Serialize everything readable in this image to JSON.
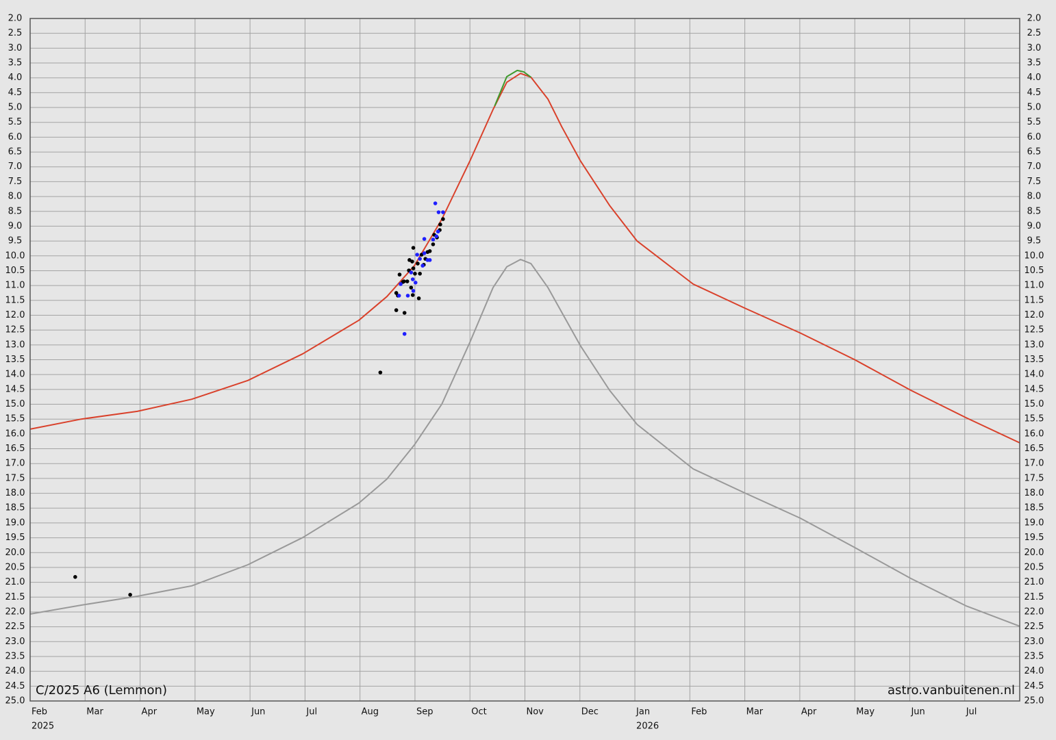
{
  "chart_data": {
    "type": "line",
    "title": "C/2025 A6 (Lemmon)",
    "source": "astro.vanbuitenen.nl",
    "xlim": [
      0,
      18
    ],
    "xticks": [
      {
        "value": 0,
        "label": "Feb"
      },
      {
        "value": 1,
        "label": "Mar"
      },
      {
        "value": 2,
        "label": "Apr"
      },
      {
        "value": 3,
        "label": "May"
      },
      {
        "value": 4,
        "label": "Jun"
      },
      {
        "value": 5,
        "label": "Jul"
      },
      {
        "value": 6,
        "label": "Aug"
      },
      {
        "value": 7,
        "label": "Sep"
      },
      {
        "value": 8,
        "label": "Oct"
      },
      {
        "value": 9,
        "label": "Nov"
      },
      {
        "value": 10,
        "label": "Dec"
      },
      {
        "value": 11,
        "label": "Jan"
      },
      {
        "value": 12,
        "label": "Feb"
      },
      {
        "value": 13,
        "label": "Mar"
      },
      {
        "value": 14,
        "label": "Apr"
      },
      {
        "value": 15,
        "label": "May"
      },
      {
        "value": 16,
        "label": "Jun"
      },
      {
        "value": 17,
        "label": "Jul"
      }
    ],
    "year_labels": [
      {
        "value": 0,
        "label": "2025"
      },
      {
        "value": 11,
        "label": "2026"
      }
    ],
    "ylim": [
      25,
      2
    ],
    "yticks": [
      {
        "value": 2,
        "label": "2.0"
      },
      {
        "value": 2.5,
        "label": "2.5"
      },
      {
        "value": 3,
        "label": "3.0"
      },
      {
        "value": 3.5,
        "label": "3.5"
      },
      {
        "value": 4,
        "label": "4.0"
      },
      {
        "value": 4.5,
        "label": "4.5"
      },
      {
        "value": 5,
        "label": "5.0"
      },
      {
        "value": 5.5,
        "label": "5.5"
      },
      {
        "value": 6,
        "label": "6.0"
      },
      {
        "value": 6.5,
        "label": "6.5"
      },
      {
        "value": 7,
        "label": "7.0"
      },
      {
        "value": 7.5,
        "label": "7.5"
      },
      {
        "value": 8,
        "label": "8.0"
      },
      {
        "value": 8.5,
        "label": "8.5"
      },
      {
        "value": 9,
        "label": "9.0"
      },
      {
        "value": 9.5,
        "label": "9.5"
      },
      {
        "value": 10,
        "label": "10.0"
      },
      {
        "value": 10.5,
        "label": "10.5"
      },
      {
        "value": 11,
        "label": "11.0"
      },
      {
        "value": 11.5,
        "label": "11.5"
      },
      {
        "value": 12,
        "label": "12.0"
      },
      {
        "value": 12.5,
        "label": "12.5"
      },
      {
        "value": 13,
        "label": "13.0"
      },
      {
        "value": 13.5,
        "label": "13.5"
      },
      {
        "value": 14,
        "label": "14.0"
      },
      {
        "value": 14.5,
        "label": "14.5"
      },
      {
        "value": 15,
        "label": "15.0"
      },
      {
        "value": 15.5,
        "label": "15.5"
      },
      {
        "value": 16,
        "label": "16.0"
      },
      {
        "value": 16.5,
        "label": "16.5"
      },
      {
        "value": 17,
        "label": "17.0"
      },
      {
        "value": 17.5,
        "label": "17.5"
      },
      {
        "value": 18,
        "label": "18.0"
      },
      {
        "value": 18.5,
        "label": "18.5"
      },
      {
        "value": 19,
        "label": "19.0"
      },
      {
        "value": 19.5,
        "label": "19.5"
      },
      {
        "value": 20,
        "label": "20.0"
      },
      {
        "value": 20.5,
        "label": "20.5"
      },
      {
        "value": 21,
        "label": "21.0"
      },
      {
        "value": 21.5,
        "label": "21.5"
      },
      {
        "value": 22,
        "label": "22.0"
      },
      {
        "value": 22.5,
        "label": "22.5"
      },
      {
        "value": 23,
        "label": "23.0"
      },
      {
        "value": 23.5,
        "label": "23.5"
      },
      {
        "value": 24,
        "label": "24.0"
      },
      {
        "value": 24.5,
        "label": "24.5"
      },
      {
        "value": 25,
        "label": "25.0"
      }
    ],
    "grid": true,
    "series": [
      {
        "type": "line",
        "color": "#999999",
        "x": [
          0,
          0.93,
          1.95,
          2.94,
          3.96,
          4.96,
          5.98,
          6.49,
          6.99,
          7.49,
          8.0,
          8.42,
          8.67,
          8.92,
          9.11,
          9.42,
          10.01,
          10.54,
          11.04,
          12.06,
          13.0,
          14.01,
          15.0,
          16.02,
          17.02,
          18
        ],
        "values": [
          22.07,
          21.77,
          21.47,
          21.12,
          20.41,
          19.49,
          18.33,
          17.52,
          16.37,
          14.99,
          12.91,
          11.07,
          10.37,
          10.12,
          10.26,
          11.07,
          13.03,
          14.53,
          15.68,
          17.18,
          17.99,
          18.84,
          19.83,
          20.87,
          21.79,
          22.48
        ]
      },
      {
        "type": "line",
        "color": "#d9412b",
        "x": [
          0,
          0.93,
          1.95,
          2.94,
          3.96,
          4.96,
          5.98,
          6.49,
          6.99,
          7.49,
          8.0,
          8.42,
          8.67,
          8.92,
          9.11,
          9.42,
          9.67,
          10.01,
          10.54,
          11.04,
          12.06,
          13.0,
          14.01,
          15.0,
          16.02,
          17.02,
          18
        ],
        "values": [
          15.84,
          15.5,
          15.24,
          14.83,
          14.2,
          13.3,
          12.17,
          11.37,
          10.33,
          8.76,
          6.8,
          5.07,
          4.15,
          3.85,
          3.98,
          4.72,
          5.65,
          6.8,
          8.3,
          9.5,
          10.95,
          11.76,
          12.6,
          13.5,
          14.53,
          15.45,
          16.3
        ]
      },
      {
        "type": "line",
        "color": "#3f9a2c",
        "x": [
          8.45,
          8.67,
          8.86,
          8.98,
          9.11
        ],
        "values": [
          4.95,
          3.96,
          3.75,
          3.8,
          3.98
        ]
      },
      {
        "type": "scatter",
        "color": "#000000",
        "x": [
          0.82,
          1.82,
          6.37,
          6.66,
          6.81,
          6.66,
          6.69,
          6.72,
          6.8,
          6.86,
          6.89,
          6.9,
          6.95,
          6.97,
          6.97,
          7.0,
          6.96,
          7.07,
          7.05,
          7.09,
          7.12,
          7.16,
          7.19,
          7.23,
          7.27,
          7.33,
          7.35,
          7.4,
          7.45,
          7.46,
          7.51,
          6.93,
          6.78
        ],
        "values": [
          20.82,
          21.42,
          13.93,
          11.83,
          11.92,
          11.25,
          11.34,
          10.63,
          10.86,
          10.86,
          10.49,
          10.14,
          10.19,
          9.73,
          10.42,
          10.6,
          11.32,
          11.43,
          10.26,
          10.6,
          9.96,
          10.3,
          10.1,
          9.87,
          9.84,
          9.61,
          9.29,
          9.38,
          9.13,
          8.94,
          8.76,
          11.07,
          10.88
        ]
      },
      {
        "type": "scatter",
        "color": "#1f1fff",
        "x": [
          7.37,
          7.43,
          7.51,
          7.17,
          6.81,
          6.71,
          6.87,
          6.97,
          7.01,
          6.74,
          6.93,
          7.04,
          7.09,
          7.17,
          7.23,
          7.27,
          7.33,
          7.39,
          7.42,
          7.14,
          6.96
        ],
        "values": [
          8.23,
          8.53,
          8.53,
          9.43,
          12.63,
          11.34,
          11.34,
          11.18,
          10.9,
          10.95,
          10.56,
          9.96,
          10.1,
          9.91,
          10.14,
          10.14,
          9.45,
          9.34,
          9.18,
          10.33,
          10.79
        ]
      }
    ]
  }
}
